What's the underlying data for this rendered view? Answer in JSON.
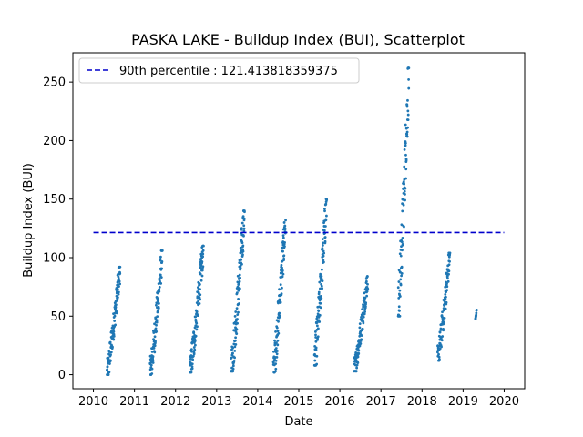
{
  "chart_data": {
    "type": "scatter",
    "title": "PASKA LAKE - Buildup Index (BUI), Scatterplot",
    "xlabel": "Date",
    "ylabel": "Buildup Index (BUI)",
    "xlim": [
      2009.5,
      2020.5
    ],
    "ylim": [
      -12,
      275
    ],
    "x_ticks": [
      2010,
      2011,
      2012,
      2013,
      2014,
      2015,
      2016,
      2017,
      2018,
      2019,
      2020
    ],
    "x_tick_labels": [
      "2010",
      "2011",
      "2012",
      "2013",
      "2014",
      "2015",
      "2016",
      "2017",
      "2018",
      "2019",
      "2020"
    ],
    "y_ticks": [
      0,
      50,
      100,
      150,
      200,
      250
    ],
    "y_tick_labels": [
      "0",
      "50",
      "100",
      "150",
      "200",
      "250"
    ],
    "grid": false,
    "legend_position": "top-left",
    "series": [
      {
        "name": "",
        "color": "#1f77b4",
        "season_ranges": [
          {
            "start": 2010.33,
            "end": 2010.65,
            "min": 0,
            "max": 92
          },
          {
            "start": 2011.38,
            "end": 2011.68,
            "min": 0,
            "max": 106
          },
          {
            "start": 2012.35,
            "end": 2012.68,
            "min": 2,
            "max": 110
          },
          {
            "start": 2013.35,
            "end": 2013.68,
            "min": 3,
            "max": 140
          },
          {
            "start": 2014.38,
            "end": 2014.68,
            "min": 2,
            "max": 132
          },
          {
            "start": 2015.38,
            "end": 2015.68,
            "min": 8,
            "max": 150
          },
          {
            "start": 2016.35,
            "end": 2016.68,
            "min": 3,
            "max": 84
          },
          {
            "start": 2017.42,
            "end": 2017.68,
            "min": 50,
            "max": 262
          },
          {
            "start": 2018.38,
            "end": 2018.68,
            "min": 12,
            "max": 104
          },
          {
            "start": 2019.3,
            "end": 2019.33,
            "min": 47,
            "max": 56
          }
        ]
      }
    ],
    "reference_lines": [
      {
        "label": "90th percentile : 121.413818359375",
        "y": 121.413818359375,
        "x_start": 2010.0,
        "x_end": 2020.0,
        "color": "#0000cc",
        "style": "dashed"
      }
    ]
  }
}
